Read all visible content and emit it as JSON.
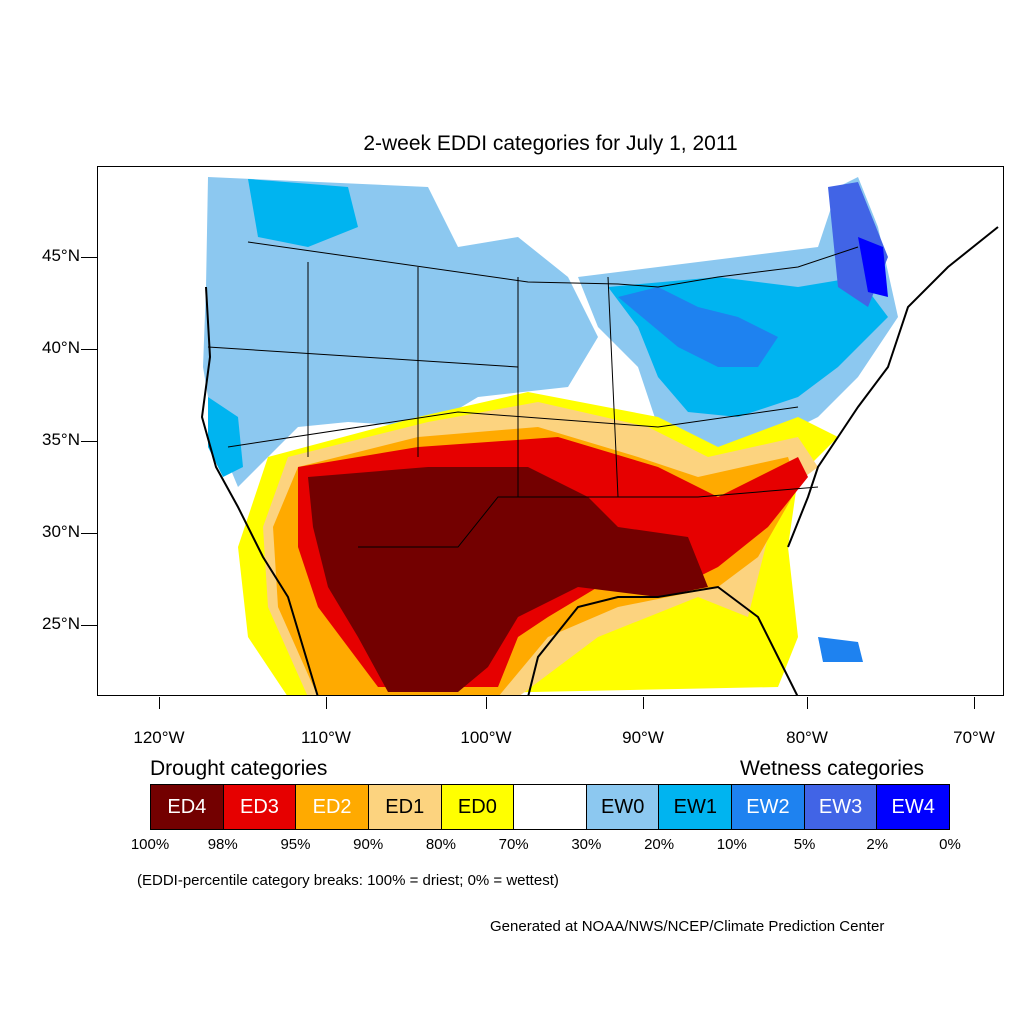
{
  "title": "2-week EDDI categories for July 1, 2011",
  "lat_labels": [
    "45°N",
    "40°N",
    "35°N",
    "30°N",
    "25°N"
  ],
  "lon_labels": [
    "120°W",
    "110°W",
    "100°W",
    "90°W",
    "80°W",
    "70°W"
  ],
  "legend": {
    "drought_title": "Drought categories",
    "wetness_title": "Wetness categories",
    "categories": [
      {
        "label": "ED4",
        "color": "#730000",
        "text_color": "#ffffff"
      },
      {
        "label": "ED3",
        "color": "#e60000",
        "text_color": "#ffffff"
      },
      {
        "label": "ED2",
        "color": "#ffaa00",
        "text_color": "#ffffff"
      },
      {
        "label": "ED1",
        "color": "#fcd37f",
        "text_color": "#000000"
      },
      {
        "label": "ED0",
        "color": "#ffff00",
        "text_color": "#000000"
      },
      {
        "label": "",
        "color": "#ffffff",
        "text_color": "#000000"
      },
      {
        "label": "EW0",
        "color": "#8cc8f0",
        "text_color": "#000000"
      },
      {
        "label": "EW1",
        "color": "#00b4f0",
        "text_color": "#000000"
      },
      {
        "label": "EW2",
        "color": "#1e82f0",
        "text_color": "#ffffff"
      },
      {
        "label": "EW3",
        "color": "#4164e6",
        "text_color": "#ffffff"
      },
      {
        "label": "EW4",
        "color": "#0000ff",
        "text_color": "#ffffff"
      }
    ],
    "percentiles": [
      "100%",
      "98%",
      "95%",
      "90%",
      "80%",
      "70%",
      "30%",
      "20%",
      "10%",
      "5%",
      "2%",
      "0%"
    ]
  },
  "note": "(EDDI-percentile category breaks: 100% = driest; 0% = wettest)",
  "credit": "Generated at NOAA/NWS/NCEP/Climate Prediction Center"
}
